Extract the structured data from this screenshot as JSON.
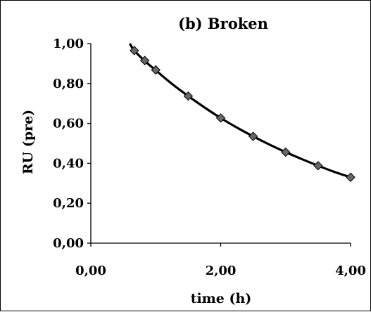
{
  "chart_data": {
    "type": "scatter",
    "title": "(b) Broken",
    "xlabel": "time (h)",
    "ylabel": "RU (pre)",
    "xlim": [
      0,
      4
    ],
    "ylim": [
      0,
      1
    ],
    "x_ticks": [
      0,
      2,
      4
    ],
    "x_tick_labels": [
      "0,00",
      "2,00",
      "4,00"
    ],
    "y_ticks": [
      0,
      0.2,
      0.4,
      0.6,
      0.8,
      1.0
    ],
    "y_tick_labels": [
      "0,00",
      "0,20",
      "0,40",
      "0,60",
      "0,80",
      "1,00"
    ],
    "grid": false,
    "legend": "none",
    "series": [
      {
        "marker": "diamond",
        "x": [
          0.67,
          0.83,
          1.0,
          1.5,
          2.0,
          2.5,
          3.0,
          3.5,
          4.0
        ],
        "y": [
          0.965,
          0.915,
          0.868,
          0.737,
          0.627,
          0.535,
          0.456,
          0.388,
          0.33
        ]
      }
    ],
    "fit_curve": {
      "x": [
        0.6,
        0.67,
        0.83,
        1.0,
        1.25,
        1.5,
        1.75,
        2.0,
        2.25,
        2.5,
        2.75,
        3.0,
        3.25,
        3.5,
        3.75,
        4.0
      ],
      "y": [
        1.0,
        0.965,
        0.913,
        0.866,
        0.798,
        0.737,
        0.68,
        0.627,
        0.579,
        0.535,
        0.494,
        0.456,
        0.421,
        0.388,
        0.357,
        0.33
      ]
    },
    "colors": {
      "curve": "#000000",
      "marker_fill": "#666666",
      "marker_stroke": "#000000"
    }
  }
}
